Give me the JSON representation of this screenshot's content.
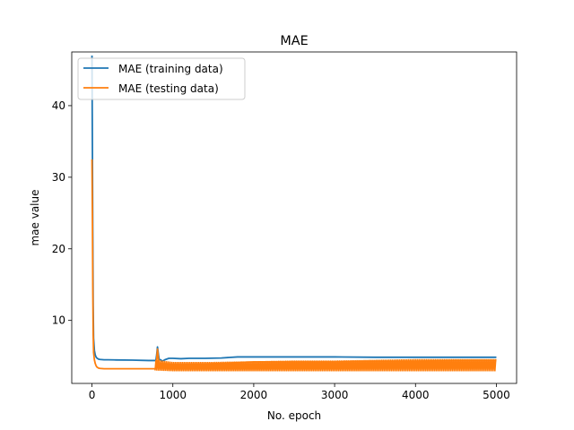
{
  "chart_data": {
    "type": "line",
    "title": "MAE",
    "xlabel": "No. epoch",
    "ylabel": "mae value",
    "xlim": [
      -250,
      5250
    ],
    "ylim": [
      1.2,
      47.5
    ],
    "xticks": [
      0,
      1000,
      2000,
      3000,
      4000,
      5000
    ],
    "yticks": [
      10,
      20,
      30,
      40
    ],
    "grid": false,
    "legend_position": "top-left",
    "series": [
      {
        "name": "MAE (training data)",
        "color": "#1f77b4",
        "x": [
          0,
          5,
          10,
          15,
          20,
          30,
          40,
          50,
          60,
          80,
          100,
          150,
          200,
          300,
          500,
          700,
          790,
          800,
          810,
          820,
          830,
          840,
          850,
          870,
          900,
          950,
          1000,
          1100,
          1200,
          1400,
          1600,
          1800,
          2000,
          2500,
          3000,
          3500,
          4000,
          4500,
          5000
        ],
        "y": [
          47,
          35,
          22,
          12,
          7.5,
          5.8,
          5.2,
          4.9,
          4.75,
          4.6,
          4.55,
          4.5,
          4.5,
          4.48,
          4.45,
          4.4,
          4.4,
          5.2,
          6.3,
          5.4,
          4.6,
          4.5,
          4.5,
          4.3,
          4.5,
          4.7,
          4.7,
          4.65,
          4.7,
          4.7,
          4.75,
          4.9,
          4.9,
          4.9,
          4.9,
          4.85,
          4.85,
          4.85,
          4.85
        ]
      },
      {
        "name": "MAE (testing data)",
        "color": "#ff7f0e",
        "x": [
          0,
          5,
          10,
          15,
          20,
          30,
          40,
          50,
          60,
          80,
          100,
          150,
          200,
          300,
          500,
          700,
          790,
          800,
          810,
          820,
          830,
          840,
          850,
          870,
          900,
          950,
          1000,
          1100,
          1200,
          1400,
          1600,
          1800,
          2000,
          2500,
          3000,
          3500,
          4000,
          4500,
          5000
        ],
        "y": [
          32.5,
          25,
          15,
          8,
          5.5,
          4.5,
          4.0,
          3.7,
          3.5,
          3.35,
          3.3,
          3.25,
          3.25,
          3.25,
          3.25,
          3.25,
          3.25,
          4.5,
          6.0,
          4.8,
          3.9,
          3.6,
          3.6,
          3.5,
          3.6,
          3.7,
          3.8,
          3.8,
          3.85,
          3.9,
          4.0,
          4.1,
          4.2,
          4.2,
          4.2,
          4.3,
          4.3,
          4.4,
          4.4
        ],
        "band": {
          "x": [
            780,
            1000,
            1500,
            2000,
            2500,
            3000,
            3500,
            4000,
            4500,
            5000
          ],
          "low": [
            3.0,
            2.9,
            2.9,
            2.9,
            2.9,
            2.9,
            2.9,
            2.9,
            2.9,
            2.9
          ],
          "high": [
            4.5,
            4.2,
            4.2,
            4.3,
            4.4,
            4.4,
            4.5,
            4.6,
            4.6,
            4.6
          ]
        }
      }
    ]
  }
}
